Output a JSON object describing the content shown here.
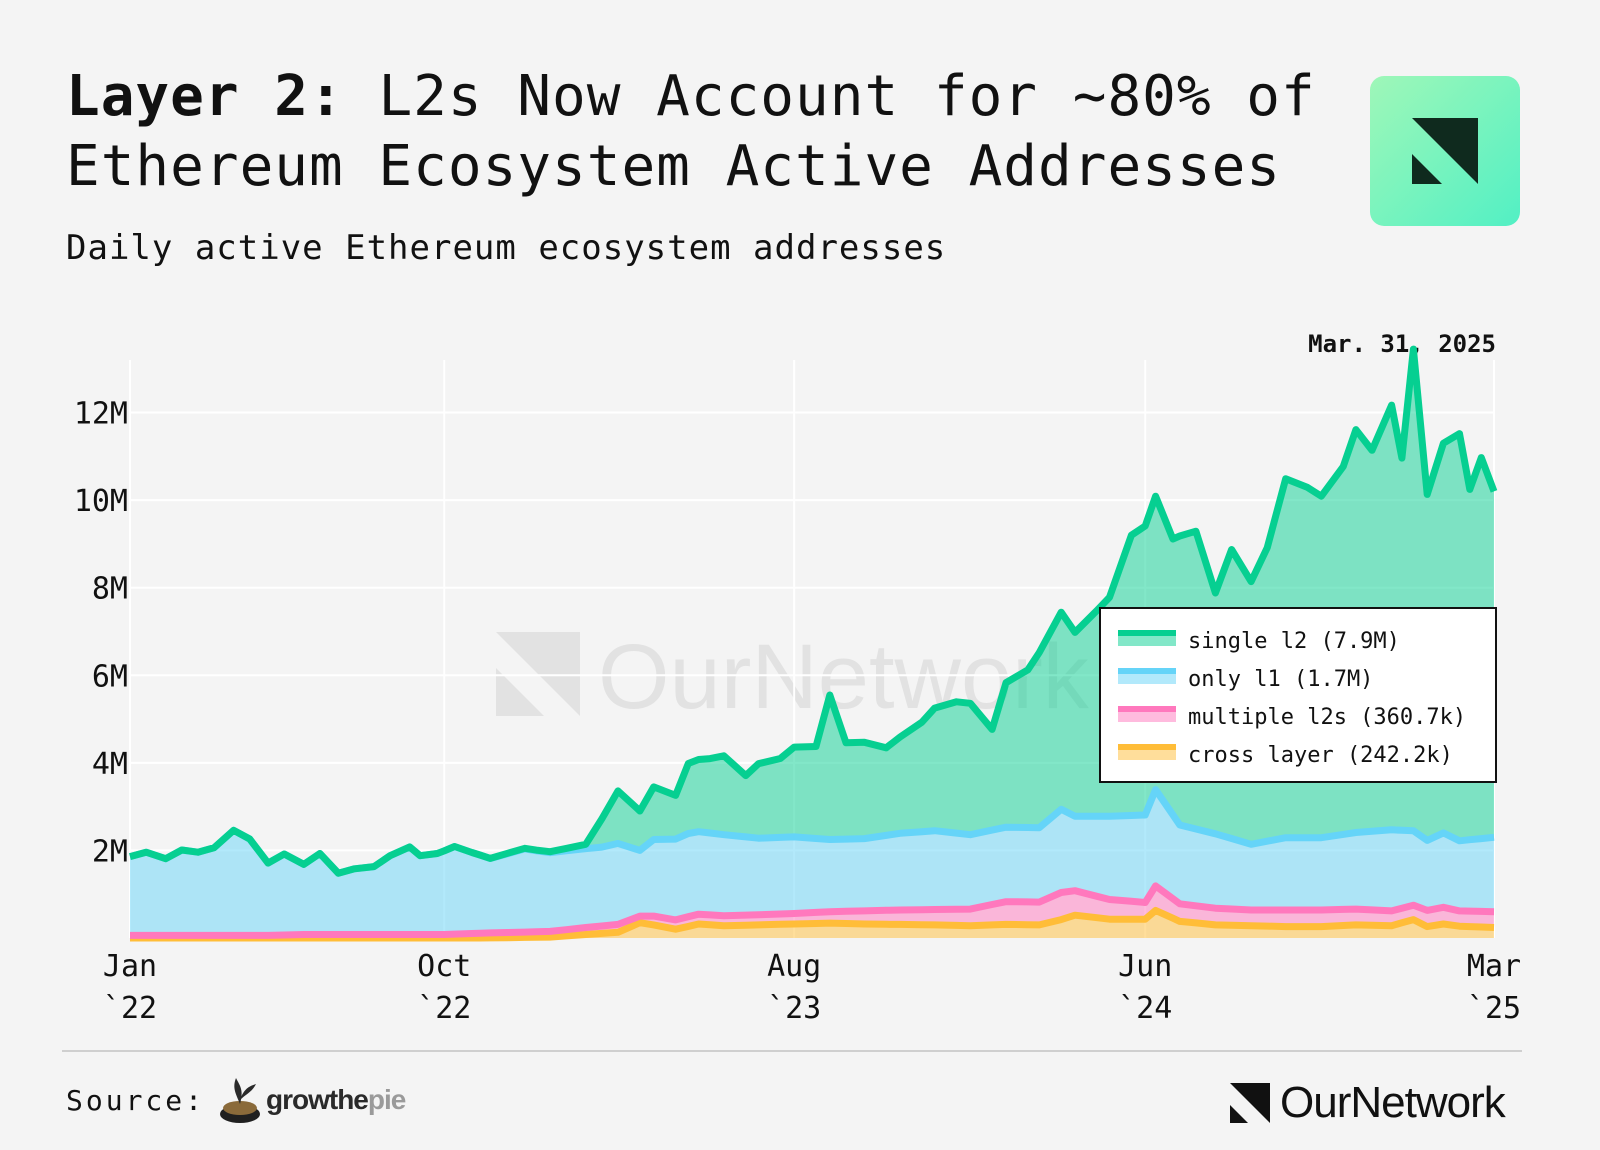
{
  "header": {
    "title_bold": "Layer 2:",
    "title_rest": "L2s Now Account for ~80% of Ethereum Ecosystem Active Addresses",
    "subtitle": "Daily active Ethereum ecosystem addresses",
    "logo_icon": "ournetwork-logo-icon"
  },
  "date_label": "Mar. 31, 2025",
  "watermark": "OurNetwork",
  "footer": {
    "source_label": "Source:",
    "source_brand_dark": "growthe",
    "source_brand_light": "pie",
    "brand": "OurNetwork"
  },
  "colors": {
    "single_l2": "#06cf91",
    "only_l1": "#65d4f8",
    "multiple_l2s": "#ff78bd",
    "cross_layer": "#ffbd38"
  },
  "chart_data": {
    "type": "area",
    "stacked": true,
    "title": "Daily active Ethereum ecosystem addresses",
    "ylim": [
      0,
      13200000
    ],
    "y_ticks": [
      2000000,
      4000000,
      6000000,
      8000000,
      10000000,
      12000000
    ],
    "y_tick_labels": [
      "2M",
      "4M",
      "6M",
      "8M",
      "10M",
      "12M"
    ],
    "x_range": [
      "2022-01-01",
      "2025-03-31"
    ],
    "x_ticks": [
      {
        "date": "2022-01-01",
        "label1": "Jan",
        "label2": "`22"
      },
      {
        "date": "2022-10-01",
        "label1": "Oct",
        "label2": "`22"
      },
      {
        "date": "2023-08-01",
        "label1": "Aug",
        "label2": "`23"
      },
      {
        "date": "2024-06-01",
        "label1": "Jun",
        "label2": "`24"
      },
      {
        "date": "2025-03-31",
        "label1": "Mar",
        "label2": "`25"
      }
    ],
    "grid": true,
    "legend_position": "right",
    "legend": [
      "single l2 (7.9M)",
      "only l1 (1.7M)",
      "multiple l2s (360.7k)",
      "cross layer (242.2k)"
    ],
    "series": [
      {
        "name": "cross layer",
        "key": "cross_layer",
        "points": [
          [
            "2022-01-01",
            0
          ],
          [
            "2022-11-01",
            0
          ],
          [
            "2023-01-01",
            20000
          ],
          [
            "2023-02-01",
            80000
          ],
          [
            "2023-03-01",
            130000
          ],
          [
            "2023-03-20",
            350000
          ],
          [
            "2023-04-01",
            300000
          ],
          [
            "2023-04-20",
            200000
          ],
          [
            "2023-05-10",
            320000
          ],
          [
            "2023-06-01",
            280000
          ],
          [
            "2023-07-01",
            300000
          ],
          [
            "2023-08-01",
            320000
          ],
          [
            "2023-09-01",
            340000
          ],
          [
            "2023-10-01",
            320000
          ],
          [
            "2023-11-01",
            310000
          ],
          [
            "2023-12-01",
            300000
          ],
          [
            "2024-01-01",
            280000
          ],
          [
            "2024-02-01",
            310000
          ],
          [
            "2024-03-01",
            300000
          ],
          [
            "2024-03-20",
            420000
          ],
          [
            "2024-04-01",
            520000
          ],
          [
            "2024-05-01",
            430000
          ],
          [
            "2024-06-01",
            430000
          ],
          [
            "2024-06-10",
            630000
          ],
          [
            "2024-07-01",
            380000
          ],
          [
            "2024-08-01",
            300000
          ],
          [
            "2024-09-01",
            280000
          ],
          [
            "2024-10-01",
            260000
          ],
          [
            "2024-11-01",
            260000
          ],
          [
            "2024-12-01",
            300000
          ],
          [
            "2025-01-01",
            280000
          ],
          [
            "2025-01-20",
            420000
          ],
          [
            "2025-02-01",
            260000
          ],
          [
            "2025-02-15",
            320000
          ],
          [
            "2025-03-01",
            270000
          ],
          [
            "2025-03-31",
            240000
          ]
        ]
      },
      {
        "name": "multiple l2s",
        "key": "multiple_l2s",
        "points": [
          [
            "2022-01-01",
            60000
          ],
          [
            "2022-05-01",
            60000
          ],
          [
            "2022-06-01",
            80000
          ],
          [
            "2022-08-01",
            80000
          ],
          [
            "2022-10-01",
            80000
          ],
          [
            "2022-11-01",
            110000
          ],
          [
            "2023-01-01",
            130000
          ],
          [
            "2023-02-01",
            160000
          ],
          [
            "2023-03-01",
            180000
          ],
          [
            "2023-03-20",
            150000
          ],
          [
            "2023-04-01",
            200000
          ],
          [
            "2023-05-01",
            220000
          ],
          [
            "2023-06-01",
            230000
          ],
          [
            "2023-07-01",
            230000
          ],
          [
            "2023-08-01",
            240000
          ],
          [
            "2023-09-01",
            260000
          ],
          [
            "2023-10-01",
            300000
          ],
          [
            "2023-11-01",
            330000
          ],
          [
            "2023-12-01",
            350000
          ],
          [
            "2024-01-01",
            380000
          ],
          [
            "2024-02-01",
            520000
          ],
          [
            "2024-03-01",
            520000
          ],
          [
            "2024-03-20",
            620000
          ],
          [
            "2024-04-01",
            560000
          ],
          [
            "2024-05-01",
            450000
          ],
          [
            "2024-06-01",
            380000
          ],
          [
            "2024-06-10",
            560000
          ],
          [
            "2024-07-01",
            400000
          ],
          [
            "2024-08-01",
            380000
          ],
          [
            "2024-09-01",
            360000
          ],
          [
            "2024-10-01",
            380000
          ],
          [
            "2024-11-01",
            380000
          ],
          [
            "2024-12-01",
            360000
          ],
          [
            "2025-01-01",
            340000
          ],
          [
            "2025-01-20",
            330000
          ],
          [
            "2025-02-01",
            370000
          ],
          [
            "2025-02-15",
            380000
          ],
          [
            "2025-03-01",
            350000
          ],
          [
            "2025-03-31",
            360000
          ]
        ]
      },
      {
        "name": "only l1",
        "key": "only_l1",
        "points": [
          [
            "2022-01-01",
            1800000
          ],
          [
            "2022-01-15",
            1900000
          ],
          [
            "2022-02-01",
            1750000
          ],
          [
            "2022-02-15",
            1950000
          ],
          [
            "2022-03-01",
            1900000
          ],
          [
            "2022-03-15",
            2000000
          ],
          [
            "2022-04-01",
            2400000
          ],
          [
            "2022-04-15",
            2200000
          ],
          [
            "2022-05-01",
            1650000
          ],
          [
            "2022-05-15",
            1850000
          ],
          [
            "2022-06-01",
            1600000
          ],
          [
            "2022-06-15",
            1850000
          ],
          [
            "2022-07-01",
            1400000
          ],
          [
            "2022-07-15",
            1500000
          ],
          [
            "2022-08-01",
            1550000
          ],
          [
            "2022-08-15",
            1800000
          ],
          [
            "2022-09-01",
            2000000
          ],
          [
            "2022-09-10",
            1800000
          ],
          [
            "2022-09-25",
            1850000
          ],
          [
            "2022-10-10",
            2000000
          ],
          [
            "2022-10-25",
            1850000
          ],
          [
            "2022-11-10",
            1700000
          ],
          [
            "2022-11-25",
            1800000
          ],
          [
            "2022-12-10",
            1900000
          ],
          [
            "2022-12-20",
            1850000
          ],
          [
            "2023-01-01",
            1800000
          ],
          [
            "2023-01-15",
            1800000
          ],
          [
            "2023-02-01",
            1800000
          ],
          [
            "2023-02-15",
            1800000
          ],
          [
            "2023-03-01",
            1850000
          ],
          [
            "2023-03-20",
            1500000
          ],
          [
            "2023-04-01",
            1750000
          ],
          [
            "2023-05-01",
            1900000
          ],
          [
            "2023-06-01",
            1850000
          ],
          [
            "2023-07-01",
            1750000
          ],
          [
            "2023-08-01",
            1750000
          ],
          [
            "2023-09-01",
            1650000
          ],
          [
            "2023-10-01",
            1650000
          ],
          [
            "2023-11-01",
            1750000
          ],
          [
            "2023-12-01",
            1800000
          ],
          [
            "2024-01-01",
            1700000
          ],
          [
            "2024-02-01",
            1700000
          ],
          [
            "2024-03-01",
            1700000
          ],
          [
            "2024-03-20",
            1900000
          ],
          [
            "2024-04-01",
            1700000
          ],
          [
            "2024-05-01",
            1900000
          ],
          [
            "2024-06-01",
            2000000
          ],
          [
            "2024-06-10",
            2200000
          ],
          [
            "2024-07-01",
            1800000
          ],
          [
            "2024-08-01",
            1700000
          ],
          [
            "2024-09-01",
            1500000
          ],
          [
            "2024-10-01",
            1650000
          ],
          [
            "2024-11-01",
            1650000
          ],
          [
            "2024-12-01",
            1750000
          ],
          [
            "2025-01-01",
            1850000
          ],
          [
            "2025-01-20",
            1700000
          ],
          [
            "2025-02-01",
            1600000
          ],
          [
            "2025-02-15",
            1700000
          ],
          [
            "2025-03-01",
            1600000
          ],
          [
            "2025-03-31",
            1700000
          ]
        ]
      },
      {
        "name": "single l2",
        "key": "single_l2",
        "points": [
          [
            "2022-01-01",
            0
          ],
          [
            "2022-11-01",
            0
          ],
          [
            "2023-01-01",
            20000
          ],
          [
            "2023-02-01",
            100000
          ],
          [
            "2023-03-01",
            1200000
          ],
          [
            "2023-03-20",
            900000
          ],
          [
            "2023-04-01",
            1200000
          ],
          [
            "2023-04-20",
            1000000
          ],
          [
            "2023-05-01",
            1600000
          ],
          [
            "2023-05-20",
            1700000
          ],
          [
            "2023-06-01",
            1800000
          ],
          [
            "2023-06-20",
            1400000
          ],
          [
            "2023-07-01",
            1700000
          ],
          [
            "2023-07-20",
            1800000
          ],
          [
            "2023-08-01",
            2050000
          ],
          [
            "2023-08-20",
            2100000
          ],
          [
            "2023-09-01",
            3300000
          ],
          [
            "2023-09-15",
            2200000
          ],
          [
            "2023-10-01",
            2200000
          ],
          [
            "2023-10-20",
            2000000
          ],
          [
            "2023-11-01",
            2200000
          ],
          [
            "2023-11-20",
            2500000
          ],
          [
            "2023-12-01",
            2800000
          ],
          [
            "2023-12-20",
            3000000
          ],
          [
            "2024-01-01",
            3000000
          ],
          [
            "2024-01-20",
            2300000
          ],
          [
            "2024-02-01",
            3300000
          ],
          [
            "2024-02-20",
            3600000
          ],
          [
            "2024-03-01",
            4000000
          ],
          [
            "2024-03-20",
            4500000
          ],
          [
            "2024-04-01",
            4200000
          ],
          [
            "2024-04-20",
            4700000
          ],
          [
            "2024-05-01",
            5000000
          ],
          [
            "2024-05-20",
            6400000
          ],
          [
            "2024-06-01",
            6600000
          ],
          [
            "2024-06-10",
            6700000
          ],
          [
            "2024-06-25",
            6300000
          ],
          [
            "2024-07-01",
            6600000
          ],
          [
            "2024-07-15",
            6800000
          ],
          [
            "2024-08-01",
            5500000
          ],
          [
            "2024-08-15",
            6600000
          ],
          [
            "2024-09-01",
            6000000
          ],
          [
            "2024-09-15",
            6700000
          ],
          [
            "2024-10-01",
            8200000
          ],
          [
            "2024-10-20",
            8000000
          ],
          [
            "2024-11-01",
            7800000
          ],
          [
            "2024-11-20",
            8400000
          ],
          [
            "2024-12-01",
            9200000
          ],
          [
            "2024-12-15",
            8700000
          ],
          [
            "2025-01-01",
            9700000
          ],
          [
            "2025-01-10",
            8500000
          ],
          [
            "2025-01-20",
            11000000
          ],
          [
            "2025-02-01",
            7900000
          ],
          [
            "2025-02-15",
            8900000
          ],
          [
            "2025-03-01",
            9300000
          ],
          [
            "2025-03-10",
            8000000
          ],
          [
            "2025-03-20",
            8700000
          ],
          [
            "2025-03-31",
            7900000
          ]
        ]
      }
    ]
  }
}
